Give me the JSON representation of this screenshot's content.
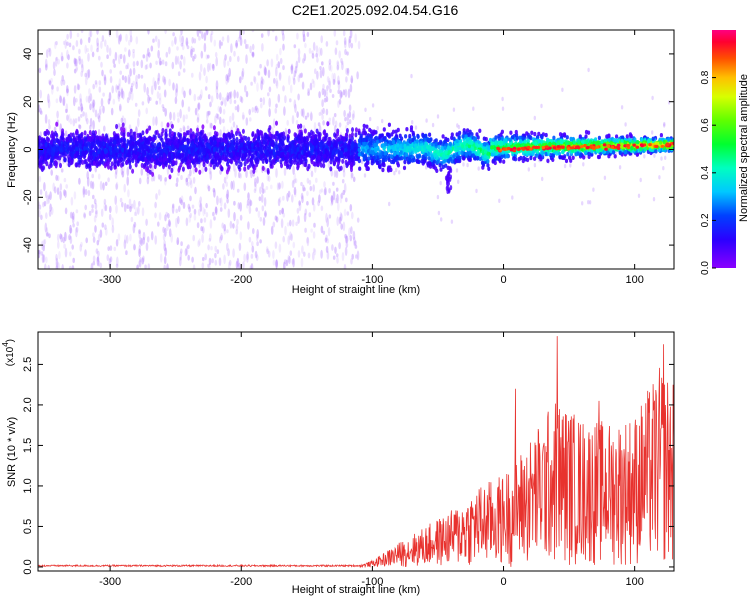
{
  "title": "C2E1.2025.092.04.54.G16",
  "chart_data": [
    {
      "type": "heatmap",
      "name": "spectrogram",
      "xlabel": "Height of straight line (km)",
      "ylabel": "Frequency (Hz)",
      "xlim": [
        -355,
        130
      ],
      "ylim": [
        -50,
        50
      ],
      "xticks": [
        -300,
        -200,
        -100,
        0,
        100
      ],
      "yticks": [
        -40,
        -20,
        0,
        20,
        40
      ],
      "colorbar": {
        "label": "Normalized spectral amplitude",
        "range": [
          0.0,
          1.0
        ],
        "ticks": [
          0.0,
          0.2,
          0.4,
          0.6,
          0.8
        ]
      },
      "description_points": {
        "noisy_region_x": [
          -355,
          -110
        ],
        "noisy_band_halfwidth_hz": 8,
        "signal_region_x": [
          -110,
          130
        ],
        "signal_band_halfwidth_hz_start": 9,
        "signal_band_halfwidth_hz_end": 3
      }
    },
    {
      "type": "line",
      "name": "snr",
      "xlabel": "Height of straight line (km)",
      "ylabel": "SNR (10 * v/v)",
      "scale_label": "(x10",
      "scale_exp": "4",
      "scale_close": ")",
      "xlim": [
        -355,
        130
      ],
      "ylim": [
        -0.05,
        2.9
      ],
      "xticks": [
        -300,
        -200,
        -100,
        0,
        100
      ],
      "yticks": [
        0.0,
        0.5,
        1.0,
        1.5,
        2.0,
        2.5
      ],
      "color": "#e8322e",
      "envelope": [
        {
          "x": -355,
          "y": 0.0
        },
        {
          "x": -110,
          "y": 0.02
        },
        {
          "x": -100,
          "y": 0.08
        },
        {
          "x": -80,
          "y": 0.3
        },
        {
          "x": -60,
          "y": 0.5
        },
        {
          "x": -40,
          "y": 0.7
        },
        {
          "x": -20,
          "y": 1.0
        },
        {
          "x": 0,
          "y": 1.15
        },
        {
          "x": 20,
          "y": 1.6
        },
        {
          "x": 40,
          "y": 2.1
        },
        {
          "x": 60,
          "y": 1.85
        },
        {
          "x": 80,
          "y": 1.8
        },
        {
          "x": 100,
          "y": 1.9
        },
        {
          "x": 120,
          "y": 2.5
        },
        {
          "x": 130,
          "y": 2.3
        }
      ],
      "peaks": [
        {
          "x": 41,
          "y": 2.85
        },
        {
          "x": 122,
          "y": 2.75
        },
        {
          "x": 9,
          "y": 2.2
        },
        {
          "x": 73,
          "y": 2.05
        }
      ]
    }
  ]
}
